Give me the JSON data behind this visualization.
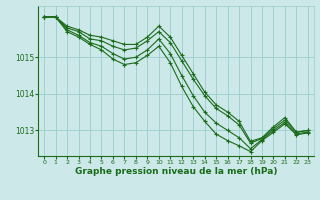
{
  "background_color": "#cce8e8",
  "grid_color": "#99cccc",
  "line_color": "#1a6b1a",
  "xlabel": "Graphe pression niveau de la mer (hPa)",
  "xlabel_fontsize": 6.5,
  "xlim": [
    -0.5,
    23.5
  ],
  "ylim": [
    1012.3,
    1016.4
  ],
  "yticks": [
    1013,
    1014,
    1015
  ],
  "xticks": [
    0,
    1,
    2,
    3,
    4,
    5,
    6,
    7,
    8,
    9,
    10,
    11,
    12,
    13,
    14,
    15,
    16,
    17,
    18,
    19,
    20,
    21,
    22,
    23
  ],
  "series": [
    [
      1016.1,
      1016.1,
      1015.85,
      1015.75,
      1015.6,
      1015.55,
      1015.45,
      1015.35,
      1015.35,
      1015.55,
      1015.85,
      1015.55,
      1015.05,
      1014.55,
      1014.05,
      1013.7,
      1013.5,
      1013.25,
      1012.7,
      1012.8,
      1013.1,
      1013.35,
      1012.95,
      1013.0
    ],
    [
      1016.1,
      1016.1,
      1015.8,
      1015.7,
      1015.5,
      1015.45,
      1015.3,
      1015.2,
      1015.25,
      1015.45,
      1015.7,
      1015.4,
      1014.9,
      1014.4,
      1013.95,
      1013.6,
      1013.4,
      1013.15,
      1012.65,
      1012.78,
      1013.05,
      1013.28,
      1012.95,
      1013.0
    ],
    [
      1016.1,
      1016.1,
      1015.75,
      1015.6,
      1015.4,
      1015.3,
      1015.1,
      1014.95,
      1015.0,
      1015.2,
      1015.5,
      1015.1,
      1014.5,
      1013.95,
      1013.5,
      1013.2,
      1013.0,
      1012.8,
      1012.5,
      1012.75,
      1013.0,
      1013.22,
      1012.9,
      1012.96
    ],
    [
      1016.1,
      1016.1,
      1015.7,
      1015.55,
      1015.35,
      1015.2,
      1014.95,
      1014.8,
      1014.85,
      1015.05,
      1015.3,
      1014.85,
      1014.2,
      1013.65,
      1013.25,
      1012.9,
      1012.72,
      1012.58,
      1012.42,
      1012.72,
      1012.95,
      1013.18,
      1012.88,
      1012.93
    ]
  ]
}
